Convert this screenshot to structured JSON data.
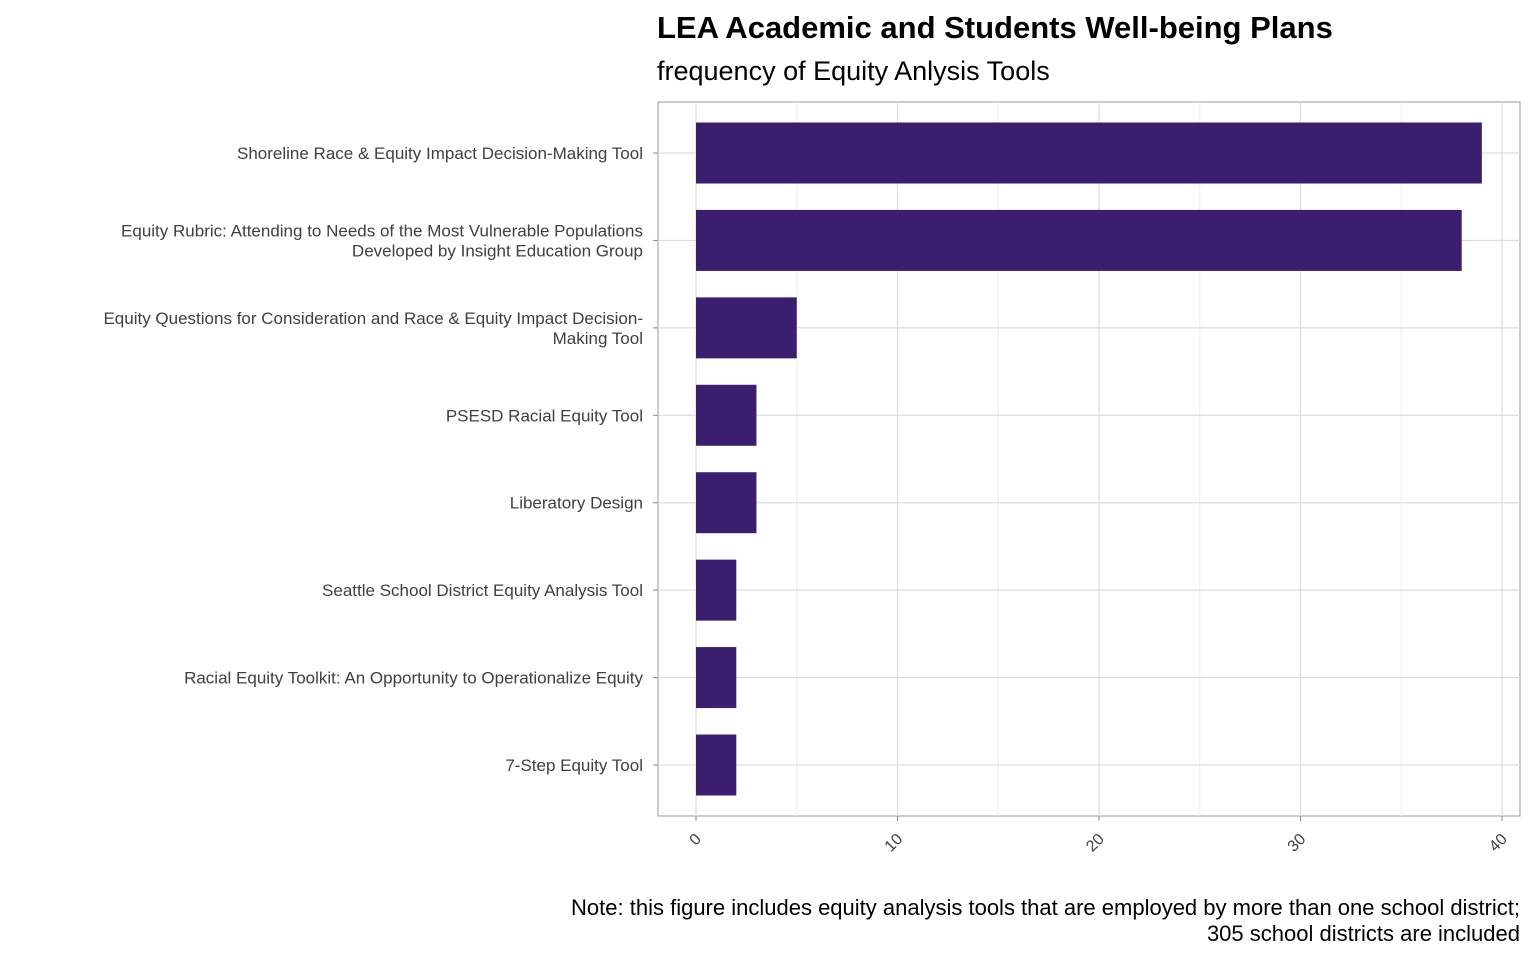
{
  "chart_data": {
    "type": "bar",
    "orientation": "horizontal",
    "title": "LEA Academic and Students Well-being Plans",
    "subtitle": "frequency of Equity Anlysis Tools",
    "caption": [
      "Note: this figure includes equity analysis tools that are employed by more than one school district;",
      "305 school districts are included"
    ],
    "xlabel": "",
    "ylabel": "",
    "xlim": [
      0,
      40
    ],
    "xticks": [
      "0",
      "10",
      "20",
      "30",
      "40"
    ],
    "categories": [
      [
        "Shoreline Race & Equity Impact Decision-Making Tool"
      ],
      [
        "Equity Rubric: Attending to Needs of the Most Vulnerable Populations",
        "Developed by Insight Education Group"
      ],
      [
        "Equity Questions for Consideration and Race & Equity Impact Decision-",
        "Making Tool"
      ],
      [
        "PSESD Racial Equity Tool"
      ],
      [
        "Liberatory Design"
      ],
      [
        "Seattle School District Equity Analysis Tool"
      ],
      [
        "Racial Equity Toolkit: An Opportunity to Operationalize Equity"
      ],
      [
        "7-Step Equity Tool"
      ]
    ],
    "values": [
      39,
      38,
      5,
      3,
      3,
      2,
      2,
      2
    ],
    "bar_color": "#3b1f6e",
    "grid": true,
    "legend": "none"
  }
}
